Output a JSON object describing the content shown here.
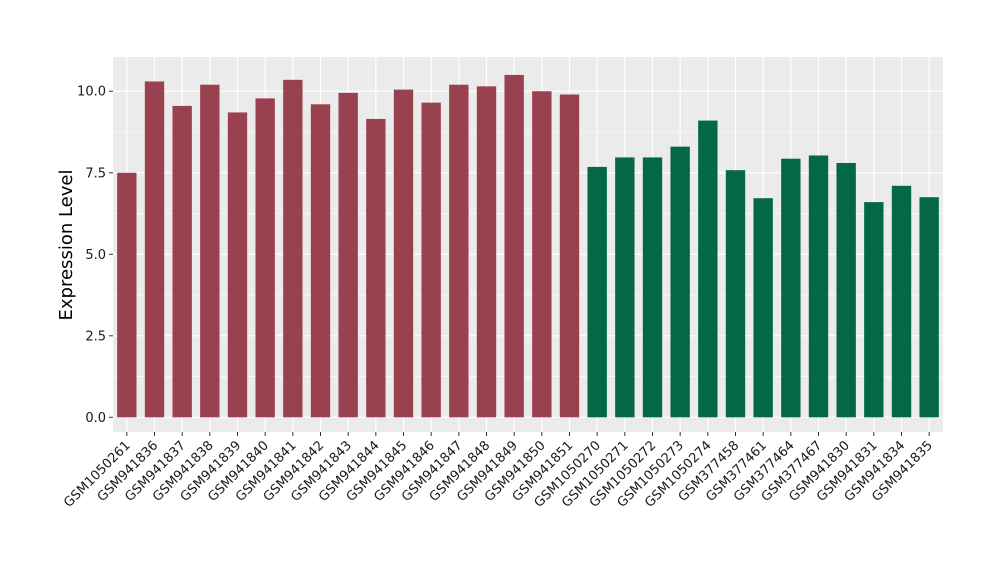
{
  "chart_data": {
    "type": "bar",
    "title": "",
    "xlabel": "",
    "ylabel": "Expression Level",
    "ylim": [
      -0.45,
      11.05
    ],
    "yticks": [
      0.0,
      2.5,
      5.0,
      7.5,
      10.0
    ],
    "ytick_labels": [
      "0.0",
      "2.5",
      "5.0",
      "7.5",
      "10.0"
    ],
    "grid": true,
    "legend": "none",
    "categories": [
      "GSM1050261",
      "GSM941836",
      "GSM941837",
      "GSM941838",
      "GSM941839",
      "GSM941840",
      "GSM941841",
      "GSM941842",
      "GSM941843",
      "GSM941844",
      "GSM941845",
      "GSM941846",
      "GSM941847",
      "GSM941848",
      "GSM941849",
      "GSM941850",
      "GSM941851",
      "GSM1050270",
      "GSM1050271",
      "GSM1050272",
      "GSM1050273",
      "GSM1050274",
      "GSM377458",
      "GSM377461",
      "GSM377464",
      "GSM377467",
      "GSM941830",
      "GSM941831",
      "GSM941834",
      "GSM941835"
    ],
    "values": [
      7.5,
      10.3,
      9.55,
      10.2,
      9.35,
      9.78,
      10.35,
      9.6,
      9.95,
      9.15,
      10.05,
      9.65,
      10.2,
      10.15,
      10.5,
      10.0,
      9.9,
      7.68,
      7.97,
      7.97,
      8.3,
      9.1,
      7.58,
      6.72,
      7.93,
      8.03,
      7.8,
      6.6,
      7.1,
      6.75
    ],
    "colors": [
      "#9a4150",
      "#9a4150",
      "#9a4150",
      "#9a4150",
      "#9a4150",
      "#9a4150",
      "#9a4150",
      "#9a4150",
      "#9a4150",
      "#9a4150",
      "#9a4150",
      "#9a4150",
      "#9a4150",
      "#9a4150",
      "#9a4150",
      "#9a4150",
      "#9a4150",
      "#046845",
      "#046845",
      "#046845",
      "#046845",
      "#046845",
      "#046845",
      "#046845",
      "#046845",
      "#046845",
      "#046845",
      "#046845",
      "#046845",
      "#046845"
    ],
    "panel_background": "#ebebeb",
    "gridline_color": "#ffffff"
  }
}
